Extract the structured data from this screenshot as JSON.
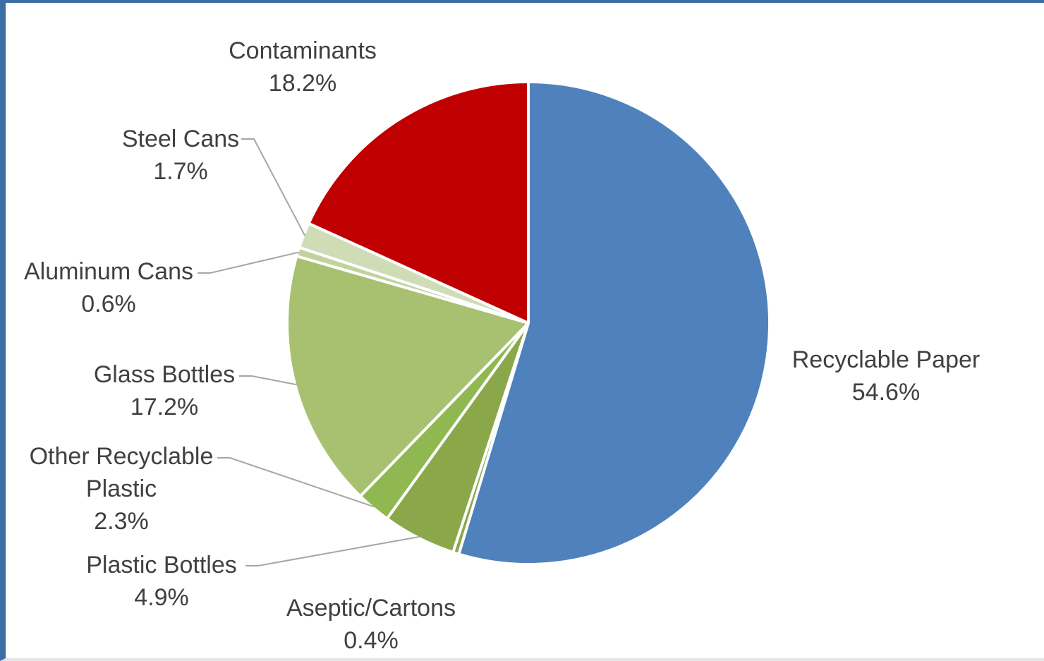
{
  "chart_data": {
    "type": "pie",
    "title": "",
    "start_angle_deg": 0,
    "direction": "clockwise",
    "slices": [
      {
        "name": "Recyclable Paper",
        "value": 54.6,
        "pct_label": "54.6%",
        "color": "#4f81bd"
      },
      {
        "name": "Aseptic/Cartons",
        "value": 0.4,
        "pct_label": "0.4%",
        "color": "#8aa84a"
      },
      {
        "name": "Plastic Bottles",
        "value": 4.9,
        "pct_label": "4.9%",
        "color": "#8aa84a"
      },
      {
        "name": "Other Recyclable Plastic",
        "value": 2.3,
        "pct_label": "2.3%",
        "color": "#90b851"
      },
      {
        "name": "Glass Bottles",
        "value": 17.2,
        "pct_label": "17.2%",
        "color": "#a7c170"
      },
      {
        "name": "Aluminum Cans",
        "value": 0.6,
        "pct_label": "0.6%",
        "color": "#c0d39b"
      },
      {
        "name": "Steel Cans",
        "value": 1.7,
        "pct_label": "1.7%",
        "color": "#cfddb6"
      },
      {
        "name": "Contaminants",
        "value": 18.2,
        "pct_label": "18.2%",
        "color": "#c00000"
      }
    ],
    "labels": [
      {
        "lines": [
          "Recyclable Paper",
          "54.6%"
        ]
      },
      {
        "lines": [
          "Aseptic/Cartons",
          "0.4%"
        ]
      },
      {
        "lines": [
          "Plastic Bottles",
          "4.9%"
        ]
      },
      {
        "lines": [
          "Other Recyclable",
          "Plastic",
          "2.3%"
        ]
      },
      {
        "lines": [
          "Glass Bottles",
          "17.2%"
        ]
      },
      {
        "lines": [
          "Aluminum Cans",
          "0.6%"
        ]
      },
      {
        "lines": [
          "Steel Cans",
          "1.7%"
        ]
      },
      {
        "lines": [
          "Contaminants",
          "18.2%"
        ]
      }
    ],
    "legend": "none"
  }
}
